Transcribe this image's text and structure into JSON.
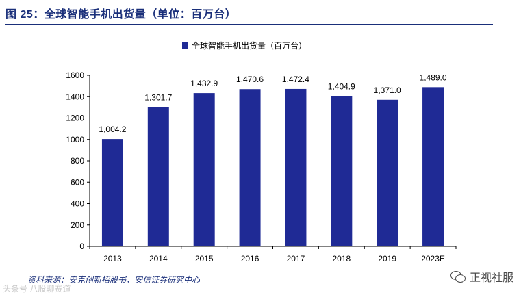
{
  "figure": {
    "title": "图 25：全球智能手机出货量（单位：百万台）",
    "source": "资料来源：安克创新招股书，安信证券研究中心"
  },
  "watermarks": {
    "left": "头条号 八股聊赛道",
    "right": "正视社服",
    "right_icon": "wechat-icon"
  },
  "colors": {
    "bar": "#1f2a95",
    "title": "#1a2f7a",
    "axis": "#000000"
  },
  "chart_data": {
    "type": "bar",
    "title": "",
    "categories": [
      "2013",
      "2014",
      "2015",
      "2016",
      "2017",
      "2018",
      "2019",
      "2023E"
    ],
    "series": [
      {
        "name": "全球智能手机出货量（百万台）",
        "values": [
          1004.2,
          1301.7,
          1432.9,
          1470.6,
          1472.4,
          1404.9,
          1371.0,
          1489.0
        ],
        "labels": [
          "1,004.2",
          "1,301.7",
          "1,432.9",
          "1,470.6",
          "1,472.4",
          "1,404.9",
          "1,371.0",
          "1,489.0"
        ]
      }
    ],
    "xlabel": "",
    "ylabel": "",
    "ylim": [
      0,
      1600
    ],
    "yticks": [
      0,
      200,
      400,
      600,
      800,
      1000,
      1200,
      1400,
      1600
    ],
    "grid": false,
    "legend": "top-center"
  }
}
